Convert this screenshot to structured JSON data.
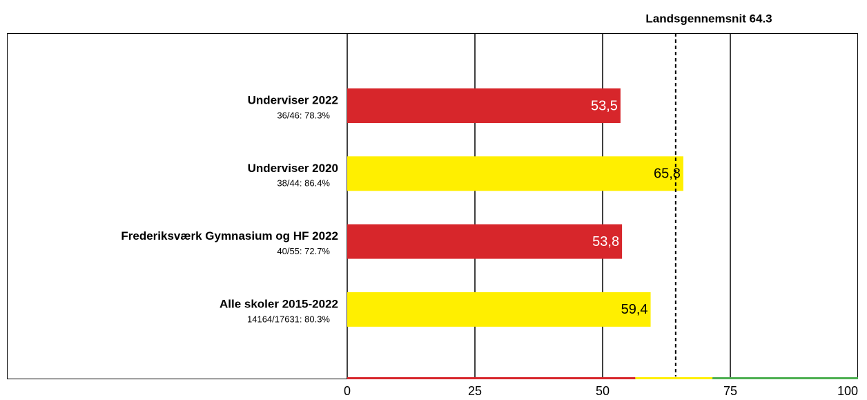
{
  "chart_data": {
    "type": "barh",
    "categories": [
      "Underviser 2022",
      "Underviser 2020",
      "Frederiksværk Gymnasium og HF 2022",
      "Alle skoler 2015-2022"
    ],
    "sublabels": [
      "36/46: 78.3%",
      "38/44: 86.4%",
      "40/55: 72.7%",
      "14164/17631: 80.3%"
    ],
    "values": [
      53.5,
      65.8,
      53.8,
      59.4
    ],
    "value_labels": [
      "53,5",
      "65,8",
      "53,8",
      "59,4"
    ],
    "colors": [
      "#d7262b",
      "#ffef00",
      "#d7262b",
      "#ffef00"
    ],
    "label_colors": [
      "#ffffff",
      "#000000",
      "#ffffff",
      "#000000"
    ],
    "xlim": [
      0,
      100
    ],
    "xticks": [
      0,
      25,
      50,
      75,
      100
    ],
    "grid": true,
    "reference_line": {
      "value": 64.3,
      "label": "Landsgennemsnit 64.3"
    },
    "bands": [
      {
        "from": 0,
        "to": 56.4,
        "color": "#d7262b"
      },
      {
        "from": 56.4,
        "to": 71.5,
        "color": "#ffef00"
      },
      {
        "from": 71.5,
        "to": 100,
        "color": "#4caf50"
      }
    ]
  }
}
